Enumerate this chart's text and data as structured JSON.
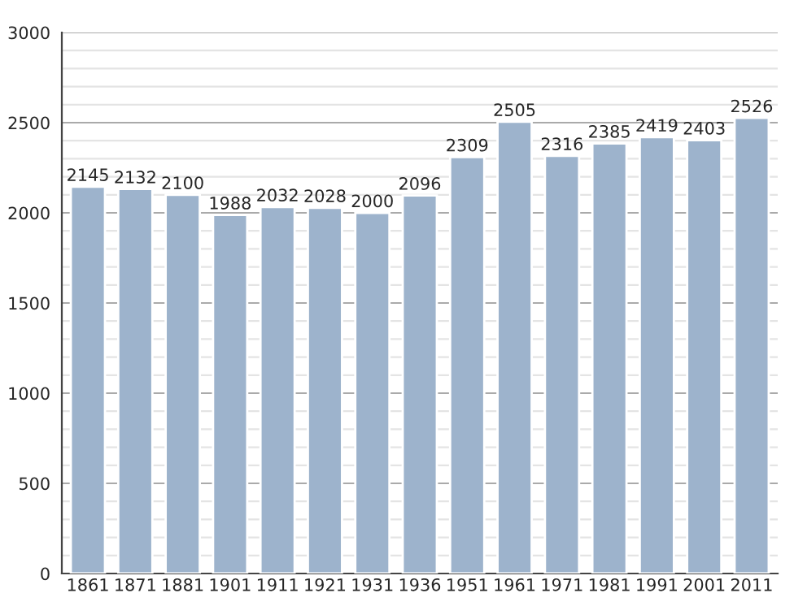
{
  "chart_data": {
    "type": "bar",
    "categories": [
      "1861",
      "1871",
      "1881",
      "1901",
      "1911",
      "1921",
      "1931",
      "1936",
      "1951",
      "1961",
      "1971",
      "1981",
      "1991",
      "2001",
      "2011"
    ],
    "values": [
      2145,
      2132,
      2100,
      1988,
      2032,
      2028,
      2000,
      2096,
      2309,
      2505,
      2316,
      2385,
      2419,
      2403,
      2526
    ],
    "color": "#9db3cc",
    "ylim": [
      0,
      3000
    ],
    "yticks": [
      0,
      {
        "value": 100,
        "label": null
      },
      {
        "value": 200,
        "label": null
      },
      {
        "value": 300,
        "label": null
      },
      {
        "value": 400,
        "label": null
      },
      500,
      {
        "value": 600,
        "label": null
      },
      {
        "value": 700,
        "label": null
      },
      {
        "value": 800,
        "label": null
      },
      {
        "value": 900,
        "label": null
      },
      1000,
      {
        "value": 1100,
        "label": null
      },
      {
        "value": 1200,
        "label": null
      },
      {
        "value": 1300,
        "label": null
      },
      {
        "value": 1400,
        "label": null
      },
      1500,
      {
        "value": 1600,
        "label": null
      },
      {
        "value": 1700,
        "label": null
      },
      {
        "value": 1800,
        "label": null
      },
      {
        "value": 1900,
        "label": null
      },
      2000,
      {
        "value": 2100,
        "label": null
      },
      {
        "value": 2200,
        "label": null
      },
      {
        "value": 2300,
        "label": null
      },
      {
        "value": 2400,
        "label": null
      },
      2500,
      {
        "value": 2600,
        "label": null
      },
      {
        "value": 2700,
        "label": null
      },
      {
        "value": 2800,
        "label": null
      },
      {
        "value": 2900,
        "label": null
      },
      3000
    ],
    "grid": "y",
    "data_labels": true
  }
}
